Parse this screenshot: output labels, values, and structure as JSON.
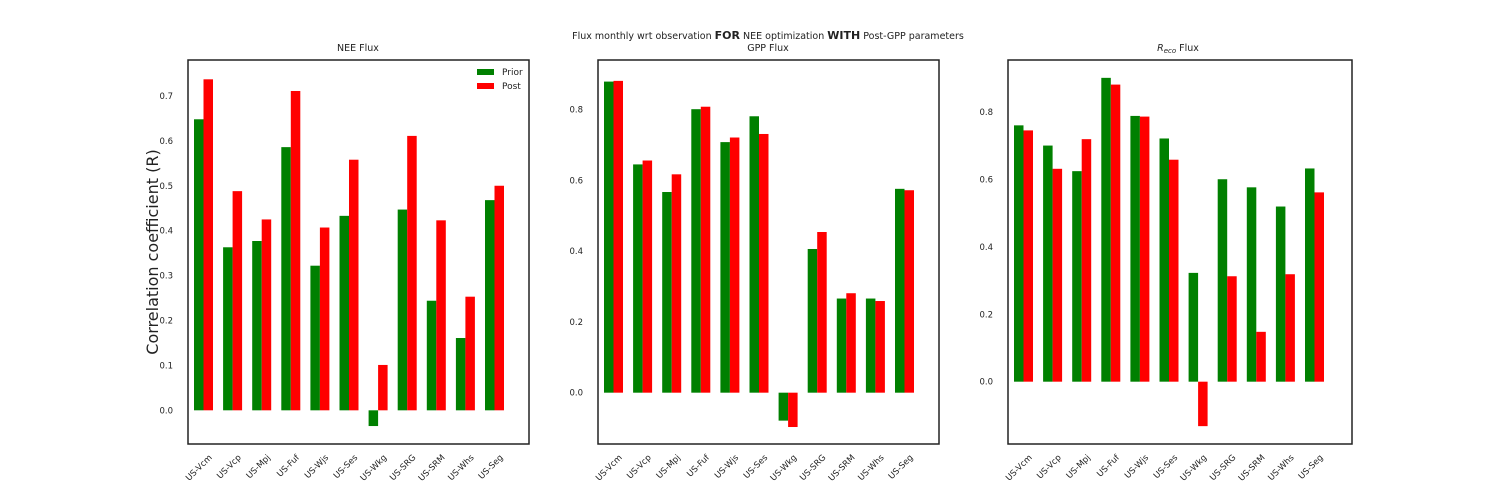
{
  "figure": {
    "suptitle_prefix": "Flux monthly wrt observation ",
    "suptitle_bold1": "FOR",
    "suptitle_mid": " NEE optimization ",
    "suptitle_bold2": "WITH",
    "suptitle_suffix": " Post-GPP parameters"
  },
  "chart_data": [
    {
      "type": "bar",
      "title": "NEE Flux",
      "ylabel": "Correlation coefficient (R)",
      "categories": [
        "US-Vcm",
        "US-Vcp",
        "US-Mpj",
        "US-Fuf",
        "US-Wjs",
        "US-Ses",
        "US-Wkg",
        "US-SRG",
        "US-SRM",
        "US-Whs",
        "US-Seg"
      ],
      "ylim": [
        -0.075,
        0.78
      ],
      "yticks": [
        0.0,
        0.1,
        0.2,
        0.3,
        0.4,
        0.5,
        0.6,
        0.7
      ],
      "yticklabels": [
        "0.0",
        "0.1",
        "0.2",
        "0.3",
        "0.4",
        "0.5",
        "0.6",
        "0.7"
      ],
      "legend": "top-right",
      "series": [
        {
          "name": "Prior",
          "color": "#008000",
          "values": [
            0.648,
            0.363,
            0.377,
            0.586,
            0.322,
            0.433,
            -0.035,
            0.447,
            0.244,
            0.161,
            0.468
          ]
        },
        {
          "name": "Post",
          "color": "#ff0000",
          "values": [
            0.737,
            0.488,
            0.425,
            0.711,
            0.407,
            0.558,
            0.101,
            0.611,
            0.423,
            0.253,
            0.5
          ]
        }
      ]
    },
    {
      "type": "bar",
      "title": "GPP Flux",
      "categories": [
        "US-Vcm",
        "US-Vcp",
        "US-Mpj",
        "US-Fuf",
        "US-Wjs",
        "US-Ses",
        "US-Wkg",
        "US-SRG",
        "US-SRM",
        "US-Whs",
        "US-Seg"
      ],
      "ylim": [
        -0.145,
        0.94
      ],
      "yticks": [
        0.0,
        0.2,
        0.4,
        0.6,
        0.8
      ],
      "yticklabels": [
        "0.0",
        "0.2",
        "0.4",
        "0.6",
        "0.8"
      ],
      "series": [
        {
          "name": "Prior",
          "color": "#008000",
          "values": [
            0.879,
            0.645,
            0.567,
            0.801,
            0.708,
            0.781,
            -0.079,
            0.406,
            0.266,
            0.266,
            0.576
          ]
        },
        {
          "name": "Post",
          "color": "#ff0000",
          "values": [
            0.881,
            0.656,
            0.617,
            0.808,
            0.721,
            0.731,
            -0.097,
            0.454,
            0.281,
            0.259,
            0.572
          ]
        }
      ]
    },
    {
      "type": "bar",
      "title_main": "R",
      "title_sub": "eco",
      "title_rest": " Flux",
      "categories": [
        "US-Vcm",
        "US-Vcp",
        "US-Mpj",
        "US-Fuf",
        "US-Wjs",
        "US-Ses",
        "US-Wkg",
        "US-SRG",
        "US-SRM",
        "US-Whs",
        "US-Seg"
      ],
      "ylim": [
        -0.185,
        0.955
      ],
      "yticks": [
        0.0,
        0.2,
        0.4,
        0.6,
        0.8
      ],
      "yticklabels": [
        "0.0",
        "0.2",
        "0.4",
        "0.6",
        "0.8"
      ],
      "series": [
        {
          "name": "Prior",
          "color": "#008000",
          "values": [
            0.761,
            0.701,
            0.625,
            0.902,
            0.789,
            0.722,
            0.323,
            0.601,
            0.577,
            0.52,
            0.633
          ]
        },
        {
          "name": "Post",
          "color": "#ff0000",
          "values": [
            0.746,
            0.632,
            0.72,
            0.882,
            0.787,
            0.659,
            -0.132,
            0.313,
            0.148,
            0.319,
            0.562
          ]
        }
      ]
    }
  ]
}
